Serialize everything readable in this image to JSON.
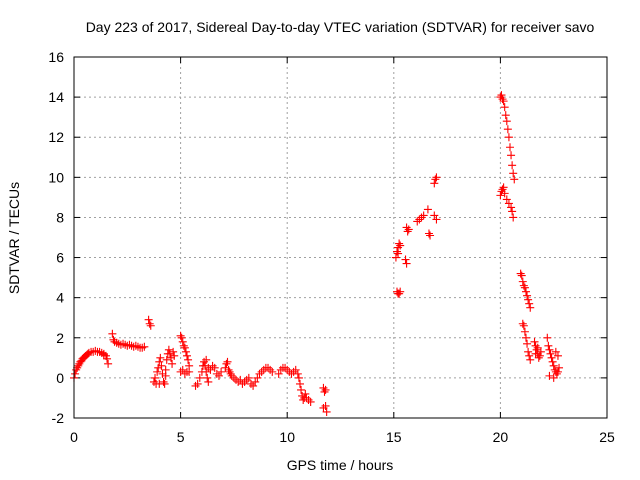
{
  "chart_data": {
    "type": "scatter",
    "title": "Day 223 of 2017, Sidereal Day-to-day VTEC variation (SDTVAR) for receiver savo",
    "xlabel": "GPS time / hours",
    "ylabel": "SDTVAR / TECUs",
    "xlim": [
      0,
      25
    ],
    "ylim": [
      -2,
      16
    ],
    "xticks": [
      0,
      5,
      10,
      15,
      20,
      25
    ],
    "yticks": [
      -2,
      0,
      2,
      4,
      6,
      8,
      10,
      12,
      14,
      16
    ],
    "xtick_labels": [
      "0",
      "5",
      "10",
      "15",
      "20",
      "25"
    ],
    "ytick_labels": [
      "-2",
      "0",
      "2",
      "4",
      "6",
      "8",
      "10",
      "12",
      "14",
      "16"
    ],
    "grid": true,
    "marker": "plus",
    "marker_color": "#ff0000",
    "series": [
      {
        "name": "SDTVAR",
        "x": [
          0.0,
          0.05,
          0.1,
          0.15,
          0.2,
          0.25,
          0.3,
          0.35,
          0.4,
          0.45,
          0.5,
          0.55,
          0.6,
          0.65,
          0.7,
          0.8,
          0.9,
          1.0,
          1.1,
          1.2,
          1.3,
          1.4,
          1.5,
          1.55,
          1.6,
          1.4,
          1.8,
          1.85,
          1.9,
          2.0,
          2.1,
          2.2,
          2.3,
          2.4,
          2.5,
          2.6,
          2.7,
          2.8,
          2.9,
          3.0,
          3.1,
          3.2,
          3.3,
          3.5,
          3.55,
          3.6,
          3.75,
          3.8,
          3.85,
          3.9,
          3.95,
          4.0,
          4.05,
          4.1,
          4.15,
          4.2,
          4.25,
          4.3,
          4.35,
          4.4,
          4.45,
          4.5,
          4.55,
          4.6,
          4.65,
          4.7,
          4.0,
          4.3,
          5.0,
          5.05,
          5.1,
          5.15,
          5.2,
          5.25,
          5.3,
          5.35,
          5.4,
          5.0,
          5.1,
          5.2,
          5.3,
          5.4,
          5.7,
          5.8,
          5.9,
          6.0,
          6.05,
          6.1,
          6.15,
          6.2,
          6.25,
          6.3,
          6.4,
          6.5,
          6.6,
          6.7,
          6.8,
          6.9,
          6.2,
          6.3,
          7.1,
          7.15,
          7.2,
          7.25,
          7.3,
          7.35,
          7.4,
          7.5,
          7.6,
          7.7,
          7.8,
          7.9,
          8.0,
          8.1,
          8.2,
          8.3,
          8.4,
          8.5,
          8.6,
          8.7,
          8.8,
          8.9,
          9.0,
          9.1,
          9.2,
          9.3,
          9.6,
          9.7,
          9.8,
          9.9,
          10.0,
          10.1,
          10.2,
          10.3,
          10.4,
          10.5,
          10.55,
          10.6,
          10.65,
          10.7,
          10.75,
          10.8,
          10.85,
          10.9,
          11.0,
          11.1,
          11.7,
          11.75,
          11.8,
          11.85,
          11.7,
          11.8,
          15.1,
          15.15,
          15.2,
          15.25,
          15.3,
          15.15,
          15.2,
          15.25,
          15.3,
          15.2,
          15.55,
          15.6,
          15.65,
          15.7,
          15.6,
          16.1,
          16.2,
          16.3,
          16.4,
          16.6,
          16.65,
          16.7,
          16.9,
          16.95,
          17.0,
          16.9,
          17.0,
          20.0,
          20.05,
          20.1,
          20.15,
          20.2,
          20.25,
          20.3,
          20.35,
          20.4,
          20.45,
          20.5,
          20.55,
          20.6,
          20.65,
          20.0,
          20.05,
          20.1,
          20.15,
          20.2,
          20.3,
          20.4,
          20.5,
          20.55,
          20.6,
          20.95,
          21.0,
          21.05,
          21.1,
          21.15,
          21.2,
          21.25,
          21.3,
          21.35,
          21.4,
          21.05,
          21.1,
          21.15,
          21.2,
          21.25,
          21.3,
          21.35,
          21.4,
          21.6,
          21.65,
          21.7,
          21.75,
          21.8,
          21.85,
          21.9,
          21.65,
          21.75,
          22.2,
          22.25,
          22.3,
          22.35,
          22.4,
          22.45,
          22.5,
          22.55,
          22.6,
          22.65,
          22.7,
          22.75,
          22.3,
          22.5,
          22.6,
          22.7
        ],
        "y": [
          0.0,
          0.2,
          0.4,
          0.5,
          0.6,
          0.7,
          0.8,
          0.85,
          0.95,
          1.0,
          1.05,
          1.1,
          1.15,
          1.2,
          1.25,
          1.3,
          1.3,
          1.35,
          1.3,
          1.3,
          1.25,
          1.2,
          1.1,
          0.95,
          0.7,
          1.15,
          2.2,
          1.9,
          1.8,
          1.75,
          1.7,
          1.65,
          1.7,
          1.65,
          1.6,
          1.65,
          1.6,
          1.55,
          1.6,
          1.55,
          1.5,
          1.5,
          1.55,
          2.9,
          2.7,
          2.6,
          -0.2,
          0.0,
          -0.3,
          0.3,
          0.5,
          0.8,
          1.0,
          0.6,
          0.2,
          -0.2,
          -0.3,
          0.4,
          0.9,
          1.2,
          1.4,
          1.2,
          1.0,
          0.7,
          1.3,
          1.1,
          -0.3,
          0.1,
          2.1,
          2.0,
          1.8,
          1.6,
          1.5,
          1.3,
          1.1,
          0.9,
          0.6,
          0.3,
          0.4,
          0.2,
          0.3,
          0.3,
          -0.4,
          -0.3,
          0.0,
          0.3,
          0.6,
          0.8,
          0.6,
          0.3,
          0.0,
          -0.2,
          0.4,
          0.6,
          0.5,
          0.2,
          0.1,
          0.3,
          0.9,
          0.5,
          0.5,
          0.7,
          0.8,
          0.4,
          0.3,
          0.2,
          0.1,
          0.0,
          -0.1,
          -0.2,
          -0.1,
          -0.3,
          -0.2,
          -0.1,
          0.0,
          -0.3,
          -0.4,
          -0.2,
          0.0,
          0.2,
          0.3,
          0.4,
          0.5,
          0.5,
          0.4,
          0.3,
          0.2,
          0.4,
          0.5,
          0.5,
          0.4,
          0.3,
          0.2,
          0.3,
          0.4,
          0.2,
          0.0,
          -0.3,
          -0.6,
          -0.9,
          -1.1,
          -1.0,
          -0.8,
          -1.0,
          -1.1,
          -1.2,
          -0.5,
          -0.7,
          -1.4,
          -1.7,
          -1.5,
          -0.6,
          6.0,
          6.3,
          6.5,
          6.7,
          6.6,
          4.3,
          4.2,
          4.2,
          4.3,
          6.2,
          5.9,
          7.5,
          7.3,
          7.4,
          5.7,
          7.8,
          7.9,
          8.0,
          8.1,
          8.4,
          7.2,
          7.1,
          9.7,
          9.9,
          10.0,
          8.1,
          7.9,
          14.0,
          14.1,
          13.9,
          13.8,
          13.5,
          13.1,
          12.8,
          12.4,
          12.0,
          11.5,
          11.1,
          10.6,
          10.2,
          9.9,
          9.1,
          9.3,
          9.4,
          9.5,
          9.2,
          8.9,
          8.7,
          8.5,
          8.3,
          8.0,
          5.2,
          5.1,
          4.8,
          4.6,
          4.5,
          4.3,
          4.1,
          3.9,
          3.7,
          3.5,
          2.7,
          2.6,
          2.3,
          2.0,
          1.7,
          1.3,
          1.1,
          0.9,
          1.8,
          1.6,
          1.4,
          1.2,
          1.0,
          1.1,
          1.3,
          1.2,
          1.5,
          2.0,
          1.6,
          1.4,
          1.2,
          1.0,
          0.8,
          0.6,
          0.4,
          0.3,
          0.2,
          0.3,
          0.5,
          0.1,
          0.0,
          1.3,
          1.1
        ]
      }
    ]
  }
}
